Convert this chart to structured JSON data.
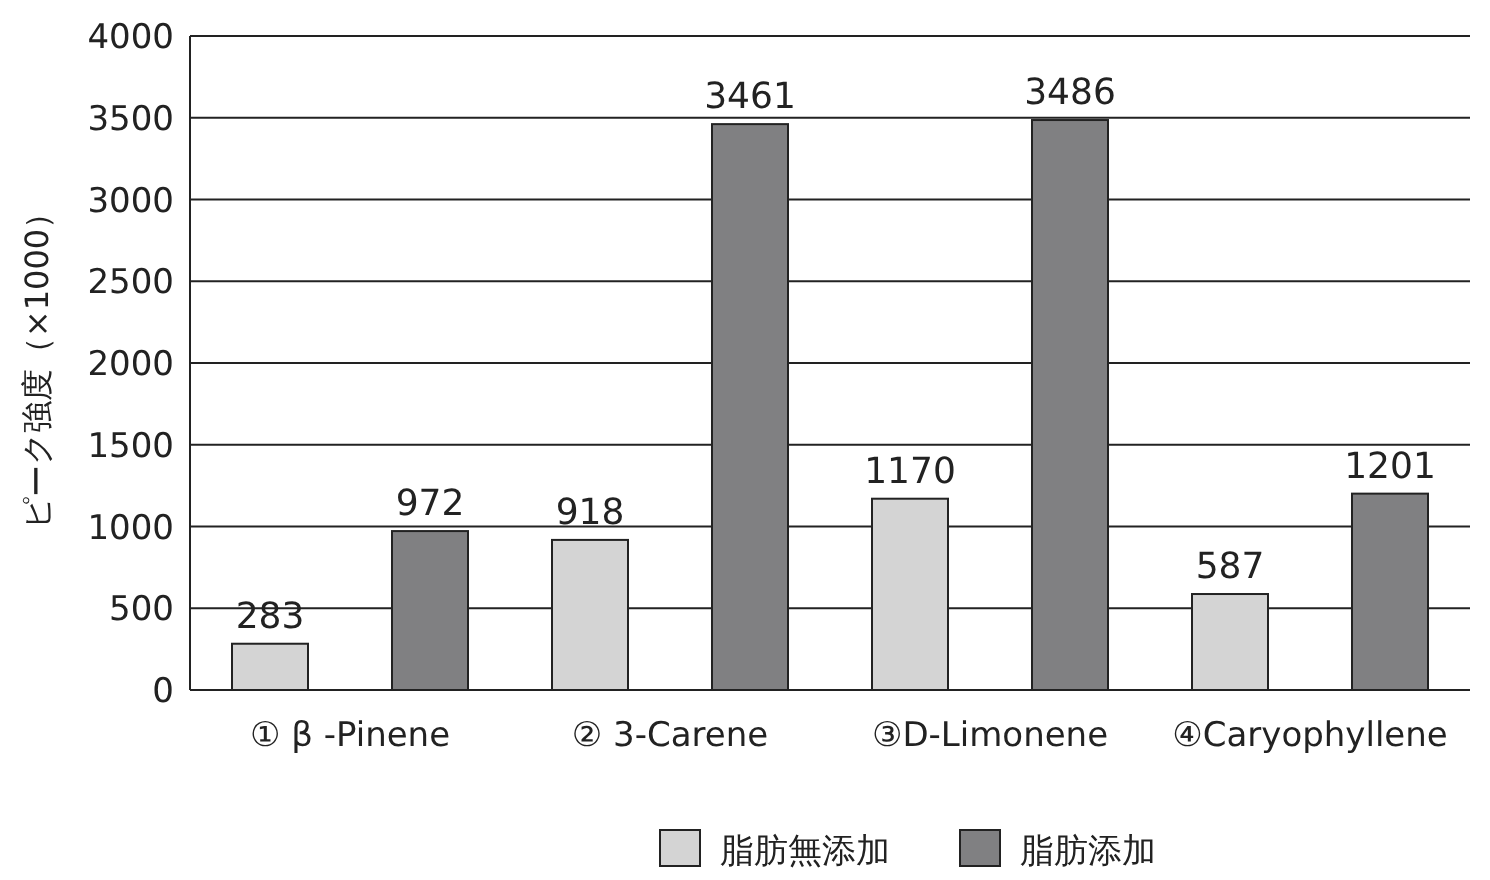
{
  "chart_data": {
    "type": "bar",
    "ylabel": "ピーク強度（×1000）",
    "categories": [
      "① β -Pinene",
      "② 3-Carene",
      "③D-Limonene",
      "④Caryophyllene"
    ],
    "series": [
      {
        "name": "脂肪無添加",
        "color": "#d4d4d4",
        "values": [
          283,
          918,
          1170,
          587
        ]
      },
      {
        "name": "脂肪添加",
        "color": "#808082",
        "values": [
          972,
          3461,
          3486,
          1201
        ]
      }
    ],
    "ylim": [
      0,
      4000
    ],
    "yticks": [
      0,
      500,
      1000,
      1500,
      2000,
      2500,
      3000,
      3500,
      4000
    ],
    "grid": "y",
    "legend": "bottom",
    "data_labels": true
  }
}
